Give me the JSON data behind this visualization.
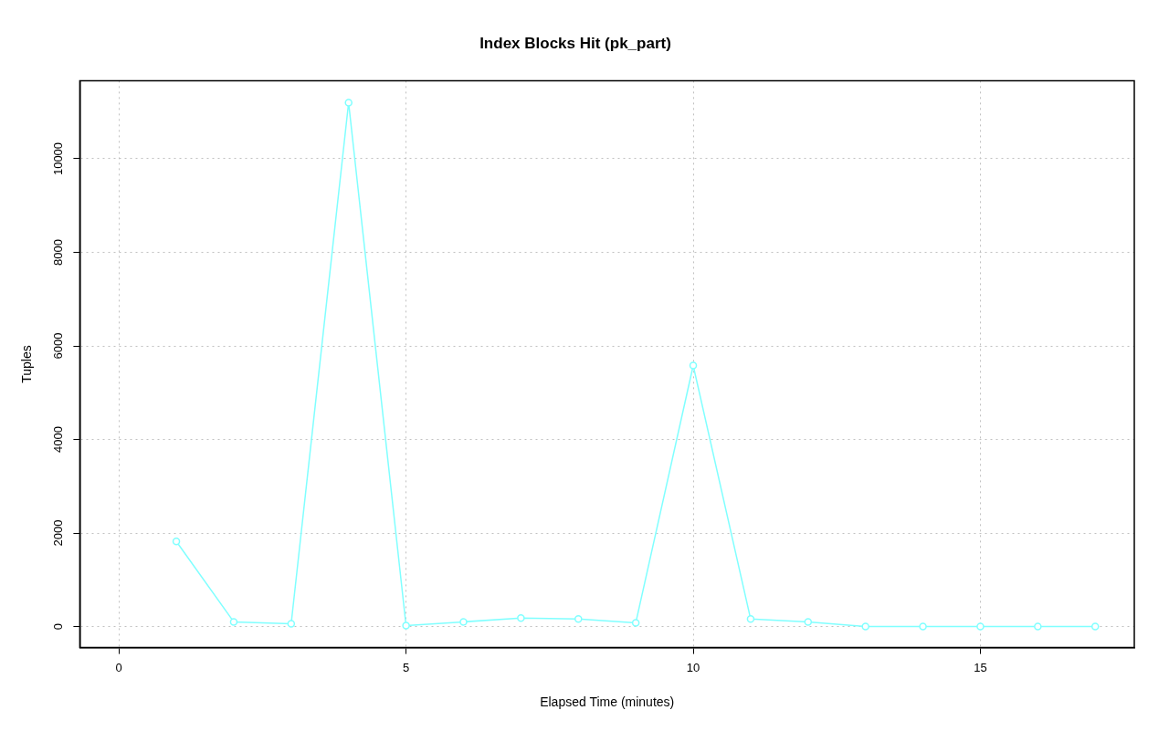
{
  "chart_data": {
    "type": "line",
    "title": "Index Blocks Hit (pk_part)",
    "xlabel": "Elapsed Time (minutes)",
    "ylabel": "Tuples",
    "x": [
      1,
      2,
      3,
      4,
      5,
      6,
      7,
      8,
      9,
      10,
      11,
      12,
      13,
      14,
      15,
      16,
      17
    ],
    "series": [
      {
        "color": "#80ffff",
        "values": [
          1820,
          100,
          60,
          11200,
          20,
          100,
          180,
          160,
          80,
          5580,
          160,
          100,
          0,
          0,
          0,
          0,
          0
        ]
      }
    ],
    "xlim": [
      -0.68,
      17.68
    ],
    "xticks": [
      0,
      5,
      10,
      15
    ],
    "ylim": [
      -450,
      11670
    ],
    "yticks": [
      0,
      2000,
      4000,
      6000,
      8000,
      10000
    ],
    "grid": true,
    "legend": false,
    "marker": "circle",
    "line_style": "solid"
  }
}
